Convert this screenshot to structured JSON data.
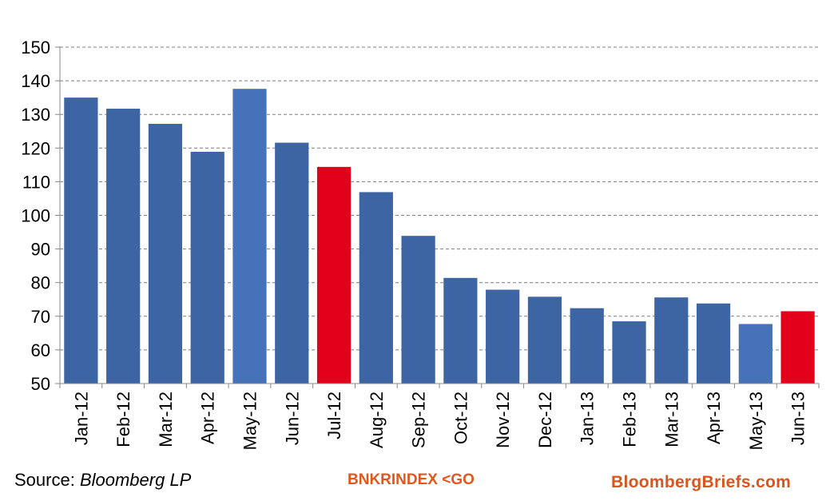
{
  "chart_data": {
    "type": "bar",
    "categories": [
      "Jan-12",
      "Feb-12",
      "Mar-12",
      "Apr-12",
      "May-12",
      "Jun-12",
      "Jul-12",
      "Aug-12",
      "Sep-12",
      "Oct-12",
      "Nov-12",
      "Dec-12",
      "Jan-13",
      "Feb-13",
      "Mar-13",
      "Apr-13",
      "May-13",
      "Jun-13"
    ],
    "values": [
      135,
      131.7,
      127.2,
      118.9,
      137.6,
      121.6,
      114.4,
      106.9,
      93.9,
      81.4,
      77.9,
      75.8,
      72.4,
      68.5,
      75.6,
      73.8,
      67.7,
      71.5
    ],
    "bar_colors": [
      "#3d64a3",
      "#3d64a3",
      "#3d64a3",
      "#3d64a3",
      "#4572b9",
      "#3d64a3",
      "#e3001b",
      "#3d64a3",
      "#3d64a3",
      "#3d64a3",
      "#3d64a3",
      "#3d64a3",
      "#3d64a3",
      "#3d64a3",
      "#3d64a3",
      "#3d64a3",
      "#4572b9",
      "#e3001b"
    ],
    "ylim": [
      50,
      150
    ],
    "yticks": [
      50,
      60,
      70,
      80,
      90,
      100,
      110,
      120,
      130,
      140,
      150
    ],
    "grid": true,
    "grid_style": "dashed",
    "title": "",
    "xlabel": "",
    "ylabel": ""
  },
  "footer": {
    "source_prefix": "Source: ",
    "source_name": "Bloomberg LP",
    "ticker": "BNKRINDEX <GO",
    "ticker_color": "#e2571e",
    "brand": "BloombergBriefs.com",
    "brand_color": "#d9541e"
  },
  "colors": {
    "bar_primary": "#3d64a3",
    "bar_highlight_blue": "#4572b9",
    "bar_highlight_red": "#e3001b",
    "gridline": "#7f7f7f",
    "axis": "#888888"
  }
}
